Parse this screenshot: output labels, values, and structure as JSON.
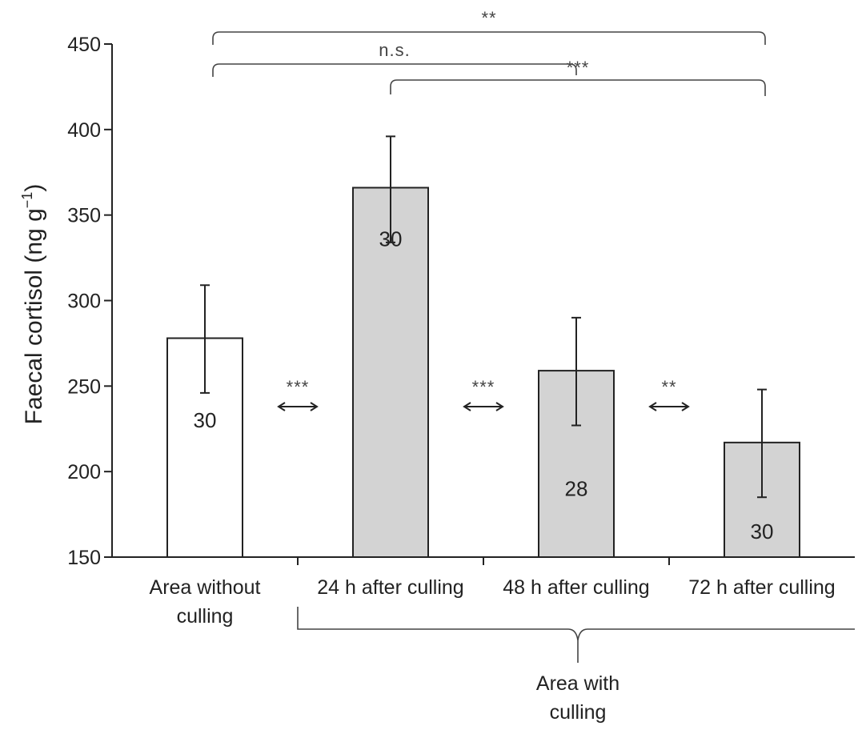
{
  "chart_data": {
    "type": "bar",
    "ylabel": "Faecal cortisol (ng g",
    "ylabel_sup": "−1",
    "ylabel_close": ")",
    "ylim": [
      150,
      450
    ],
    "yticks": [
      150,
      200,
      250,
      300,
      350,
      400,
      450
    ],
    "categories": [
      [
        "Area without",
        "culling"
      ],
      [
        "24 h after culling"
      ],
      [
        "48 h after culling"
      ],
      [
        "72 h after culling"
      ]
    ],
    "values": [
      278,
      366,
      259,
      217
    ],
    "error_upper": [
      309,
      396,
      290,
      248
    ],
    "error_lower": [
      246,
      334,
      227,
      185
    ],
    "sample_sizes": [
      "30",
      "30",
      "28",
      "30"
    ],
    "sample_size_y": [
      230,
      336,
      190,
      165
    ],
    "bar_fills": [
      "#ffffff",
      "#d3d3d3",
      "#d3d3d3",
      "#d3d3d3"
    ],
    "adjacent_comparisons": [
      {
        "between": [
          0,
          1
        ],
        "label": "***"
      },
      {
        "between": [
          1,
          2
        ],
        "label": "***"
      },
      {
        "between": [
          2,
          3
        ],
        "label": "**"
      }
    ],
    "brackets": [
      {
        "from": 0,
        "to": 3,
        "label": "**"
      },
      {
        "from": 0,
        "to": 2,
        "label": "n.s."
      },
      {
        "from": 1,
        "to": 3,
        "label": "***"
      }
    ],
    "group_label": [
      "Area with",
      "culling"
    ],
    "group_span": [
      1,
      3
    ],
    "grid": false,
    "legend": "none"
  }
}
